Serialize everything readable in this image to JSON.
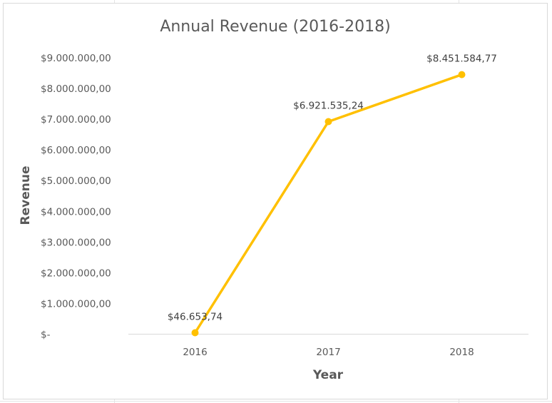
{
  "chart_data": {
    "type": "line",
    "title": "Annual Revenue (2016-2018)",
    "xlabel": "Year",
    "ylabel": "Revenue",
    "categories": [
      "2016",
      "2017",
      "2018"
    ],
    "series": [
      {
        "values": [
          46653.74,
          6921535.24,
          8451584.77
        ],
        "data_labels": [
          "$46.653,74",
          "$6.921.535,24",
          "$8.451.584,77"
        ],
        "color": "#FFC000"
      }
    ],
    "ylim": [
      0,
      9000000
    ],
    "y_ticks": [
      {
        "value": 0,
        "label": "$-"
      },
      {
        "value": 1000000,
        "label": "$1.000.000,00"
      },
      {
        "value": 2000000,
        "label": "$2.000.000,00"
      },
      {
        "value": 3000000,
        "label": "$3.000.000,00"
      },
      {
        "value": 4000000,
        "label": "$4.000.000,00"
      },
      {
        "value": 5000000,
        "label": "$5.000.000,00"
      },
      {
        "value": 6000000,
        "label": "$6.000.000,00"
      },
      {
        "value": 7000000,
        "label": "$7.000.000,00"
      },
      {
        "value": 8000000,
        "label": "$8.000.000,00"
      },
      {
        "value": 9000000,
        "label": "$9.000.000,00"
      }
    ],
    "grid": false,
    "legend": "none",
    "axis_line_color": "#D9D9D9"
  }
}
